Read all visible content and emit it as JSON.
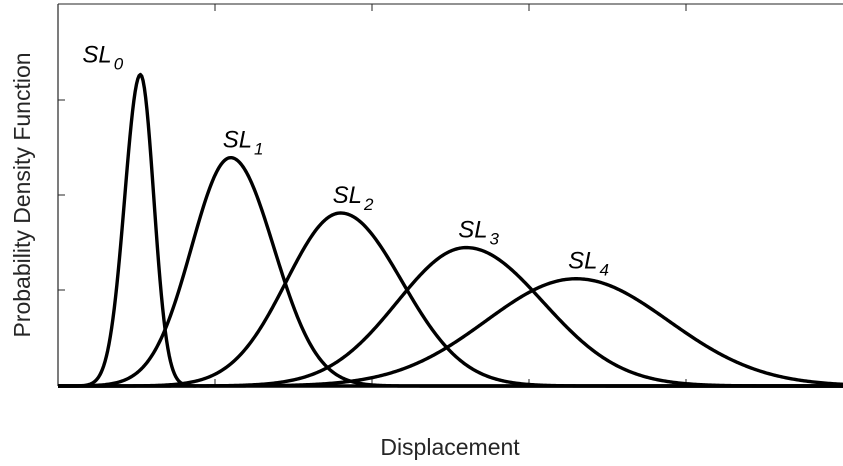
{
  "chart_data": {
    "type": "line",
    "title": "",
    "xlabel": "Displacement",
    "ylabel": "Probability Density Function",
    "xlim": [
      0,
      100
    ],
    "ylim": [
      0,
      1
    ],
    "grid": false,
    "legend": "none",
    "tick_labels_shown": false,
    "line_color": "#000000",
    "series": [
      {
        "name": "SL",
        "subscript": "0",
        "peak_x": 10.5,
        "peak_y": 0.9,
        "spread_left": 2.0,
        "spread_right": 1.7
      },
      {
        "name": "SL",
        "subscript": "1",
        "peak_x": 22.0,
        "peak_y": 0.66,
        "spread_left": 5.0,
        "spread_right": 5.5
      },
      {
        "name": "SL",
        "subscript": "2",
        "peak_x": 36.0,
        "peak_y": 0.5,
        "spread_left": 6.9,
        "spread_right": 7.8
      },
      {
        "name": "SL",
        "subscript": "3",
        "peak_x": 52.0,
        "peak_y": 0.4,
        "spread_left": 8.8,
        "spread_right": 9.8
      },
      {
        "name": "SL",
        "subscript": "4",
        "peak_x": 66.0,
        "peak_y": 0.31,
        "spread_left": 11.5,
        "spread_right": 11.8
      }
    ]
  }
}
